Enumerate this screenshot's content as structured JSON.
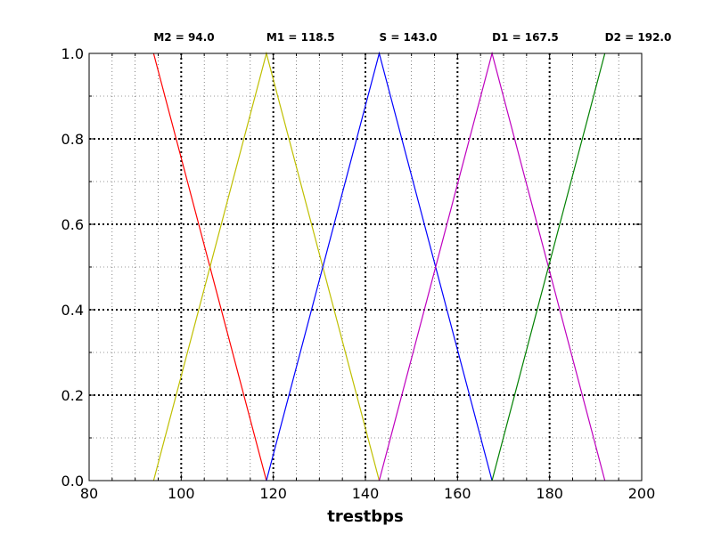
{
  "chart_data": {
    "type": "line",
    "xlabel": "trestbps",
    "ylabel": "",
    "title": "",
    "xlim": [
      80,
      200
    ],
    "ylim": [
      0,
      1
    ],
    "x_ticks": [
      80,
      100,
      120,
      140,
      160,
      180,
      200
    ],
    "x_tick_labels": [
      "80",
      "100",
      "120",
      "140",
      "160",
      "180",
      "200"
    ],
    "x_minor_ticks": [
      85,
      90,
      95,
      105,
      110,
      115,
      125,
      130,
      135,
      145,
      150,
      155,
      165,
      170,
      175,
      185,
      190,
      195
    ],
    "y_ticks": [
      0,
      0.2,
      0.4,
      0.6,
      0.8,
      1.0
    ],
    "y_tick_labels": [
      "0.0",
      "0.2",
      "0.4",
      "0.6",
      "0.8",
      "1.0"
    ],
    "y_minor_ticks": [
      0.1,
      0.3,
      0.5,
      0.7,
      0.9
    ],
    "grid": true,
    "peak_labels": [
      {
        "x": 94.0,
        "text": "M2 = 94.0"
      },
      {
        "x": 118.5,
        "text": "M1 = 118.5"
      },
      {
        "x": 143.0,
        "text": "S = 143.0"
      },
      {
        "x": 167.5,
        "text": "D1 = 167.5"
      },
      {
        "x": 192.0,
        "text": "D2 = 192.0"
      }
    ],
    "series": [
      {
        "color": "#ff0000",
        "x": [
          94.0,
          118.5
        ],
        "y": [
          1.0,
          0.0
        ]
      },
      {
        "color": "#bfbf00",
        "x": [
          94.0,
          118.5,
          143.0
        ],
        "y": [
          0.0,
          1.0,
          0.0
        ]
      },
      {
        "color": "#0000ff",
        "x": [
          118.5,
          143.0,
          167.5
        ],
        "y": [
          0.0,
          1.0,
          0.0
        ]
      },
      {
        "color": "#bf00bf",
        "x": [
          143.0,
          167.5,
          192.0
        ],
        "y": [
          0.0,
          1.0,
          0.0
        ]
      },
      {
        "color": "#008000",
        "x": [
          167.5,
          192.0
        ],
        "y": [
          0.0,
          1.0
        ]
      }
    ]
  }
}
